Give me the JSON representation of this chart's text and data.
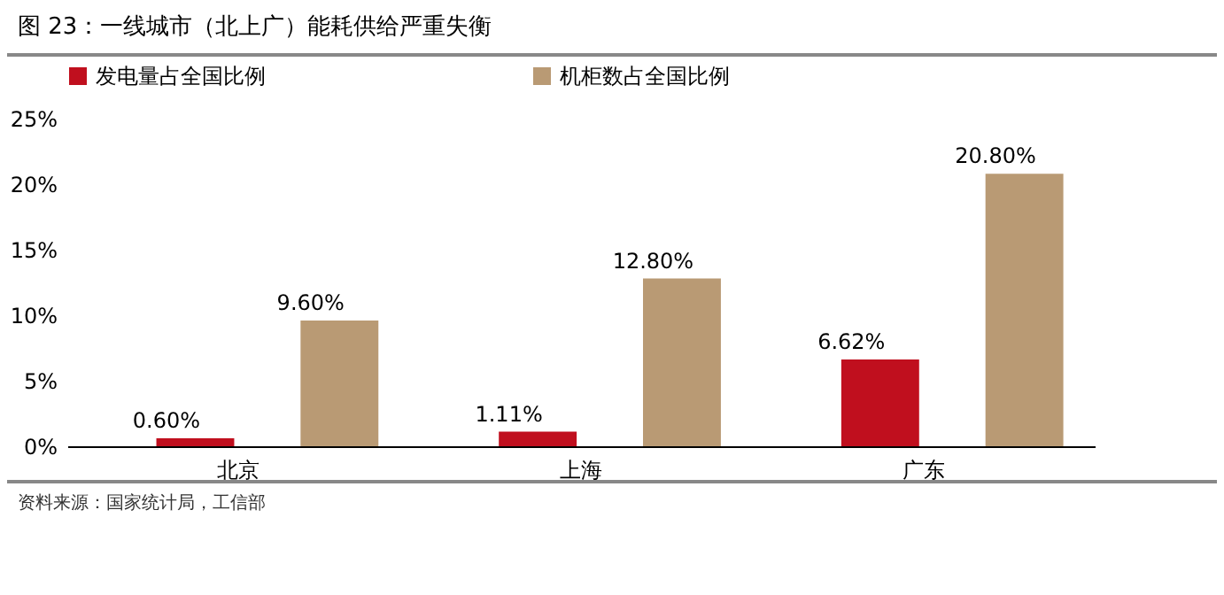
{
  "chart_data": {
    "type": "bar",
    "title": "图 23：一线城市（北上广）能耗供给严重失衡",
    "categories": [
      "北京",
      "上海",
      "广东"
    ],
    "series": [
      {
        "name": "发电量占全国比例",
        "color": "#c00f1e",
        "values": [
          0.6,
          1.11,
          6.62
        ],
        "value_labels": [
          "0.60%",
          "1.11%",
          "6.62%"
        ]
      },
      {
        "name": "机柜数占全国比例",
        "color": "#b99a74",
        "values": [
          9.6,
          12.8,
          20.8
        ],
        "value_labels": [
          "9.60%",
          "12.80%",
          "20.80%"
        ]
      }
    ],
    "ylim": [
      0,
      25
    ],
    "yticks": [
      {
        "value": 0,
        "label": "0%"
      },
      {
        "value": 5,
        "label": "5%"
      },
      {
        "value": 10,
        "label": "10%"
      },
      {
        "value": 15,
        "label": "15%"
      },
      {
        "value": 20,
        "label": "20%"
      },
      {
        "value": 25,
        "label": "25%"
      }
    ],
    "grid": false,
    "legend": "top",
    "annotations": [
      "资料来源：国家统计局，工信部"
    ]
  }
}
